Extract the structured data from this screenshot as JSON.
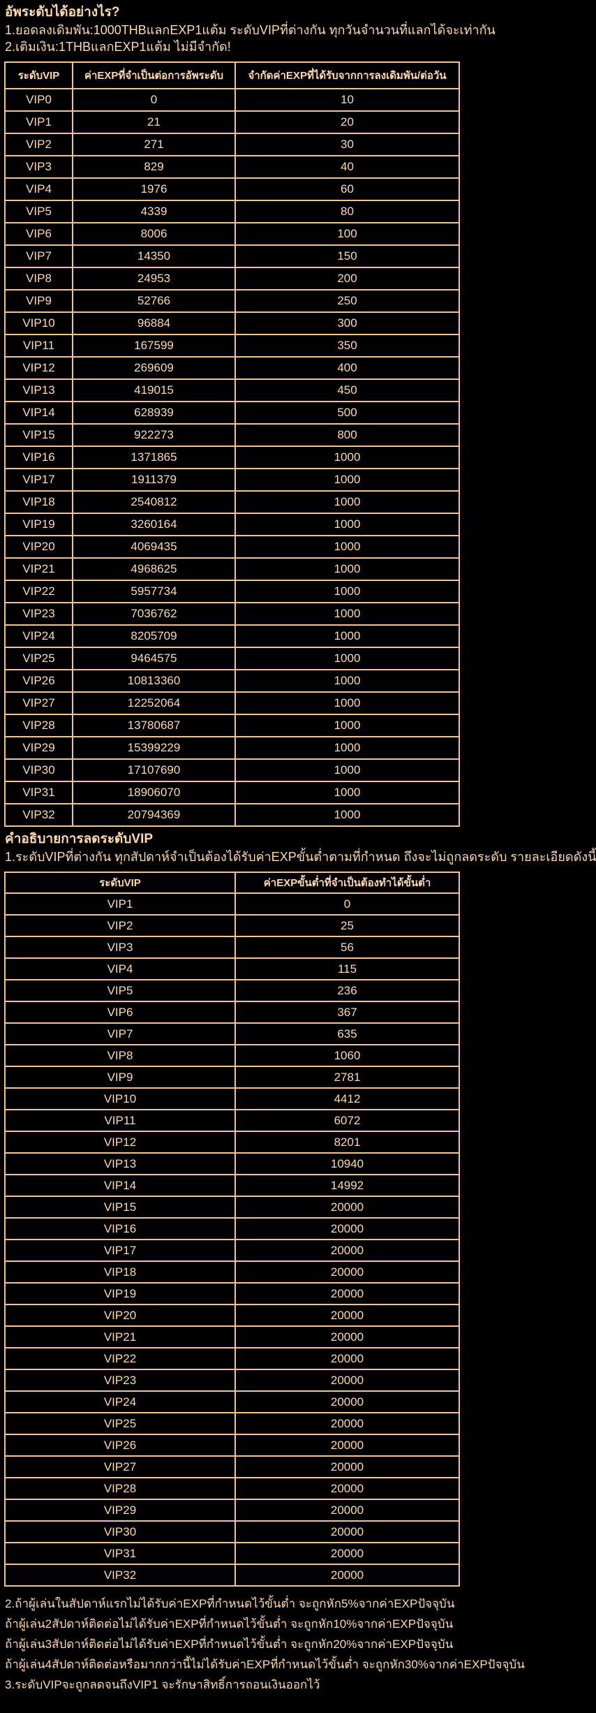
{
  "page": {
    "background_color": "#000000",
    "text_color": "#FFD9AE",
    "table_border_color": "#F2C294"
  },
  "intro": {
    "heading": "อัพระดับได้อย่างไร?",
    "lines": [
      "1.ยอดลงเดิมพัน:1000THBแลกEXP1แต้ม ระดับVIPที่ต่างกัน ทุกวันจำนวนที่แลกได้จะเท่ากัน",
      "2.เติมเงิน:1THBแลกEXP1แต้ม ไม่มีจำกัด!"
    ]
  },
  "upgrade_table": {
    "headers": [
      "ระดับVIP",
      "ค่าEXPที่จำเป็นต่อการอัพระดับ",
      "จำกัดค่าEXPที่ได้รับจากการลงเดิมพัน/ต่อวัน"
    ],
    "rows": [
      [
        "VIP0",
        "0",
        "10"
      ],
      [
        "VIP1",
        "21",
        "20"
      ],
      [
        "VIP2",
        "271",
        "30"
      ],
      [
        "VIP3",
        "829",
        "40"
      ],
      [
        "VIP4",
        "1976",
        "60"
      ],
      [
        "VIP5",
        "4339",
        "80"
      ],
      [
        "VIP6",
        "8006",
        "100"
      ],
      [
        "VIP7",
        "14350",
        "150"
      ],
      [
        "VIP8",
        "24953",
        "200"
      ],
      [
        "VIP9",
        "52766",
        "250"
      ],
      [
        "VIP10",
        "96884",
        "300"
      ],
      [
        "VIP11",
        "167599",
        "350"
      ],
      [
        "VIP12",
        "269609",
        "400"
      ],
      [
        "VIP13",
        "419015",
        "450"
      ],
      [
        "VIP14",
        "628939",
        "500"
      ],
      [
        "VIP15",
        "922273",
        "800"
      ],
      [
        "VIP16",
        "1371865",
        "1000"
      ],
      [
        "VIP17",
        "1911379",
        "1000"
      ],
      [
        "VIP18",
        "2540812",
        "1000"
      ],
      [
        "VIP19",
        "3260164",
        "1000"
      ],
      [
        "VIP20",
        "4069435",
        "1000"
      ],
      [
        "VIP21",
        "4968625",
        "1000"
      ],
      [
        "VIP22",
        "5957734",
        "1000"
      ],
      [
        "VIP23",
        "7036762",
        "1000"
      ],
      [
        "VIP24",
        "8205709",
        "1000"
      ],
      [
        "VIP25",
        "9464575",
        "1000"
      ],
      [
        "VIP26",
        "10813360",
        "1000"
      ],
      [
        "VIP27",
        "12252064",
        "1000"
      ],
      [
        "VIP28",
        "13780687",
        "1000"
      ],
      [
        "VIP29",
        "15399229",
        "1000"
      ],
      [
        "VIP30",
        "17107690",
        "1000"
      ],
      [
        "VIP31",
        "18906070",
        "1000"
      ],
      [
        "VIP32",
        "20794369",
        "1000"
      ]
    ]
  },
  "downgrade": {
    "heading": "คำอธิบายการลดระดับVIP",
    "line": "1.ระดับVIPที่ต่างกัน ทุกสัปดาห์จำเป็นต้องได้รับค่าEXPขั้นต่ำตามที่กำหนด ถึงจะไม่ถูกลดระดับ รายละเอียดดังนี้",
    "table": {
      "headers": [
        "ระดับVIP",
        "ค่าEXPขั้นต่ำที่จำเป็นต้องทำได้ขั้นต่ำ"
      ],
      "rows": [
        [
          "VIP1",
          "0"
        ],
        [
          "VIP2",
          "25"
        ],
        [
          "VIP3",
          "56"
        ],
        [
          "VIP4",
          "115"
        ],
        [
          "VIP5",
          "236"
        ],
        [
          "VIP6",
          "367"
        ],
        [
          "VIP7",
          "635"
        ],
        [
          "VIP8",
          "1060"
        ],
        [
          "VIP9",
          "2781"
        ],
        [
          "VIP10",
          "4412"
        ],
        [
          "VIP11",
          "6072"
        ],
        [
          "VIP12",
          "8201"
        ],
        [
          "VIP13",
          "10940"
        ],
        [
          "VIP14",
          "14992"
        ],
        [
          "VIP15",
          "20000"
        ],
        [
          "VIP16",
          "20000"
        ],
        [
          "VIP17",
          "20000"
        ],
        [
          "VIP18",
          "20000"
        ],
        [
          "VIP19",
          "20000"
        ],
        [
          "VIP20",
          "20000"
        ],
        [
          "VIP21",
          "20000"
        ],
        [
          "VIP22",
          "20000"
        ],
        [
          "VIP23",
          "20000"
        ],
        [
          "VIP24",
          "20000"
        ],
        [
          "VIP25",
          "20000"
        ],
        [
          "VIP26",
          "20000"
        ],
        [
          "VIP27",
          "20000"
        ],
        [
          "VIP28",
          "20000"
        ],
        [
          "VIP29",
          "20000"
        ],
        [
          "VIP30",
          "20000"
        ],
        [
          "VIP31",
          "20000"
        ],
        [
          "VIP32",
          "20000"
        ]
      ]
    },
    "notes": [
      "2.ถ้าผู้เล่นในสัปดาห์แรกไม่ได้รับค่าEXPที่กำหนดไว้ขั้นต่ำ จะถูกหัก5%จากค่าEXPปัจจุบัน",
      "ถ้าผู้เล่น2สัปดาห์ติดต่อไม่ได้รับค่าEXPที่กำหนดไว้ขั้นต่ำ จะถูกหัก10%จากค่าEXPปัจจุบัน",
      "ถ้าผู้เล่น3สัปดาห์ติดต่อไม่ได้รับค่าEXPที่กำหนดไว้ขั้นต่ำ จะถูกหัก20%จากค่าEXPปัจจุบัน",
      "ถ้าผู้เล่น4สัปดาห์ติดต่อหรือมากกว่านี้ไม่ได้รับค่าEXPที่กำหนดไว้ขั้นต่ำ จะถูกหัก30%จากค่าEXPปัจจุบัน",
      "3.ระดับVIPจะถูกลดจนถึงVIP1 จะรักษาสิทธิ์การถอนเงินออกไว้"
    ]
  }
}
